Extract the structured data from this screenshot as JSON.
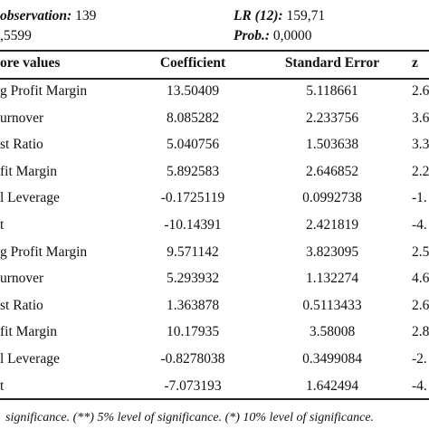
{
  "header": {
    "observation_label": "observation:",
    "observation_value": "139",
    "lr_label": "LR (12):",
    "lr_value": "159,71",
    "r2_value": ",5599",
    "prob_label": "Prob.:",
    "prob_value": "0,0000"
  },
  "table": {
    "columns": [
      "ore values",
      "Coefficient",
      "Standard Error",
      "z"
    ],
    "rows": [
      [
        "g Profit Margin",
        "13.50409",
        "5.118661",
        "2.6"
      ],
      [
        "urnover",
        "8.085282",
        "2.233756",
        "3.6"
      ],
      [
        "st Ratio",
        "5.040756",
        "1.503638",
        "3.3"
      ],
      [
        "fit Margin",
        "5.892583",
        "2.646852",
        "2.2"
      ],
      [
        "l Leverage",
        "-0.1725119",
        "0.0992738",
        "-1."
      ],
      [
        "t",
        "-10.14391",
        "2.421819",
        "-4."
      ],
      [
        "g Profit Margin",
        "9.571142",
        "3.823095",
        "2.5"
      ],
      [
        "urnover",
        "5.293932",
        "1.132274",
        "4.6"
      ],
      [
        "st Ratio",
        "1.363878",
        "0.5113433",
        "2.6"
      ],
      [
        "fit Margin",
        "10.17935",
        "3.58008",
        "2.8"
      ],
      [
        "l Leverage",
        "-0.8278038",
        "0.3499084",
        "-2."
      ],
      [
        "t",
        "-7.073193",
        "1.642494",
        "-4."
      ]
    ]
  },
  "footnote": "significance. (**) 5% level of significance. (*) 10% level of significance."
}
